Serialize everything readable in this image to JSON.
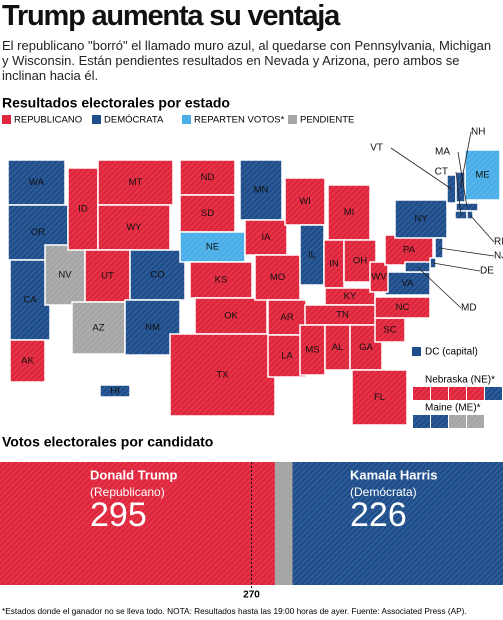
{
  "header": {
    "title": "Trump aumenta su ventaja",
    "subtitle": "El republicano \"borró\" el llamado muro azul, al quedarse con Pennsylvania, Michigan y Wisconsin. Están pendientes resultados en Nevada y Arizona, pero ambos se inclinan hacia él."
  },
  "map": {
    "title": "Resultados electorales por estado",
    "legend": [
      {
        "label": "REPUBLICANO",
        "key": "rep",
        "color": "#e0263c"
      },
      {
        "label": "DEMÓCRATA",
        "key": "dem",
        "color": "#1f4e8c"
      },
      {
        "label": "REPARTEN VOTOS*",
        "key": "split",
        "color": "#4aaee8"
      },
      {
        "label": "PENDIENTE",
        "key": "pending",
        "color": "#a6a6a6"
      }
    ],
    "states": [
      {
        "label": "WA",
        "result": "dem"
      },
      {
        "label": "OR",
        "result": "dem"
      },
      {
        "label": "CA",
        "result": "dem"
      },
      {
        "label": "NV",
        "result": "pending"
      },
      {
        "label": "ID",
        "result": "rep"
      },
      {
        "label": "MT",
        "result": "rep"
      },
      {
        "label": "WY",
        "result": "rep"
      },
      {
        "label": "UT",
        "result": "rep"
      },
      {
        "label": "AZ",
        "result": "pending"
      },
      {
        "label": "CO",
        "result": "dem"
      },
      {
        "label": "NM",
        "result": "dem"
      },
      {
        "label": "ND",
        "result": "rep"
      },
      {
        "label": "SD",
        "result": "rep"
      },
      {
        "label": "NE",
        "result": "split"
      },
      {
        "label": "KS",
        "result": "rep"
      },
      {
        "label": "OK",
        "result": "rep"
      },
      {
        "label": "TX",
        "result": "rep"
      },
      {
        "label": "MN",
        "result": "dem"
      },
      {
        "label": "IA",
        "result": "rep"
      },
      {
        "label": "MO",
        "result": "rep"
      },
      {
        "label": "AR",
        "result": "rep"
      },
      {
        "label": "LA",
        "result": "rep"
      },
      {
        "label": "WI",
        "result": "rep"
      },
      {
        "label": "IL",
        "result": "dem"
      },
      {
        "label": "MI",
        "result": "rep"
      },
      {
        "label": "IN",
        "result": "rep"
      },
      {
        "label": "OH",
        "result": "rep"
      },
      {
        "label": "KY",
        "result": "rep"
      },
      {
        "label": "TN",
        "result": "rep"
      },
      {
        "label": "MS",
        "result": "rep"
      },
      {
        "label": "AL",
        "result": "rep"
      },
      {
        "label": "GA",
        "result": "rep"
      },
      {
        "label": "FL",
        "result": "rep"
      },
      {
        "label": "SC",
        "result": "rep"
      },
      {
        "label": "NC",
        "result": "rep"
      },
      {
        "label": "VA",
        "result": "dem"
      },
      {
        "label": "WV",
        "result": "rep"
      },
      {
        "label": "PA",
        "result": "rep"
      },
      {
        "label": "NY",
        "result": "dem"
      },
      {
        "label": "ME",
        "result": "split"
      },
      {
        "label": "AK",
        "result": "rep"
      },
      {
        "label": "HI",
        "result": "dem"
      },
      {
        "label": "VT",
        "result": "dem"
      },
      {
        "label": "NH",
        "result": "dem"
      },
      {
        "label": "MA",
        "result": "dem"
      },
      {
        "label": "CT",
        "result": "dem"
      },
      {
        "label": "RI",
        "result": "dem"
      },
      {
        "label": "NJ",
        "result": "dem"
      },
      {
        "label": "DE",
        "result": "dem"
      },
      {
        "label": "MD",
        "result": "dem"
      }
    ],
    "dc": {
      "label": "DC (capital)",
      "result": "dem"
    },
    "splits": [
      {
        "label": "Nebraska (NE)*",
        "districts": [
          "rep",
          "rep",
          "rep",
          "rep",
          "dem"
        ]
      },
      {
        "label": "Maine (ME)*",
        "districts": [
          "dem",
          "dem",
          "pending",
          "pending"
        ]
      }
    ]
  },
  "votes": {
    "title": "Votos electorales por candidato",
    "threshold": 270,
    "candidates": [
      {
        "name": "Donald Trump",
        "party": "(Republicano)",
        "votes": 295,
        "color": "#e0263c"
      },
      {
        "name": "Kamala Harris",
        "party": "(Demócrata)",
        "votes": 226,
        "color": "#1f4e8c"
      }
    ]
  },
  "footnote": "*Estados donde el ganador no se lleva todo. NOTA: Resultados hasta las 19:00 horas de ayer. Fuente: Associated Press (AP)."
}
